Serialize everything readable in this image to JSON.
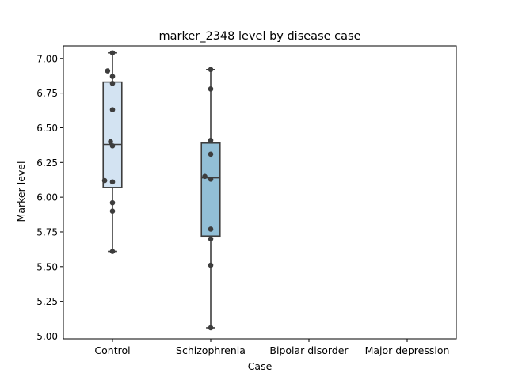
{
  "chart_data": {
    "type": "box",
    "title": "marker_2348 level by disease case",
    "xlabel": "Case",
    "ylabel": "Marker level",
    "ylim": [
      4.98,
      7.09
    ],
    "yticks": [
      5.0,
      5.25,
      5.5,
      5.75,
      6.0,
      6.25,
      6.5,
      6.75,
      7.0
    ],
    "ytick_labels": [
      "5.00",
      "5.25",
      "5.50",
      "5.75",
      "6.00",
      "6.25",
      "6.50",
      "6.75",
      "7.00"
    ],
    "categories": [
      "Control",
      "Schizophrenia",
      "Bipolar disorder",
      "Major depression"
    ],
    "boxes": [
      {
        "category": "Control",
        "whisker_low": 5.61,
        "q1": 6.07,
        "median": 6.38,
        "q3": 6.83,
        "whisker_high": 7.04,
        "color": "#d3e3f2"
      },
      {
        "category": "Schizophrenia",
        "whisker_low": 5.06,
        "q1": 5.72,
        "median": 6.14,
        "q3": 6.39,
        "whisker_high": 6.92,
        "color": "#92bfd6"
      }
    ],
    "points": [
      {
        "category": "Control",
        "values": [
          7.04,
          6.91,
          6.87,
          6.82,
          6.63,
          6.4,
          6.37,
          6.12,
          6.11,
          5.96,
          5.9,
          5.61
        ],
        "offsets": [
          0,
          -0.05,
          0,
          0,
          0,
          -0.02,
          0,
          -0.08,
          0,
          0,
          0,
          0
        ]
      },
      {
        "category": "Schizophrenia",
        "values": [
          6.92,
          6.78,
          6.41,
          6.31,
          6.15,
          6.13,
          5.77,
          5.7,
          5.51,
          5.06
        ],
        "offsets": [
          0,
          0,
          0,
          0,
          -0.06,
          0,
          0,
          0,
          0,
          0
        ]
      }
    ],
    "point_color": "#3d3d3d",
    "line_color": "#3d3d3d",
    "grid": false
  }
}
